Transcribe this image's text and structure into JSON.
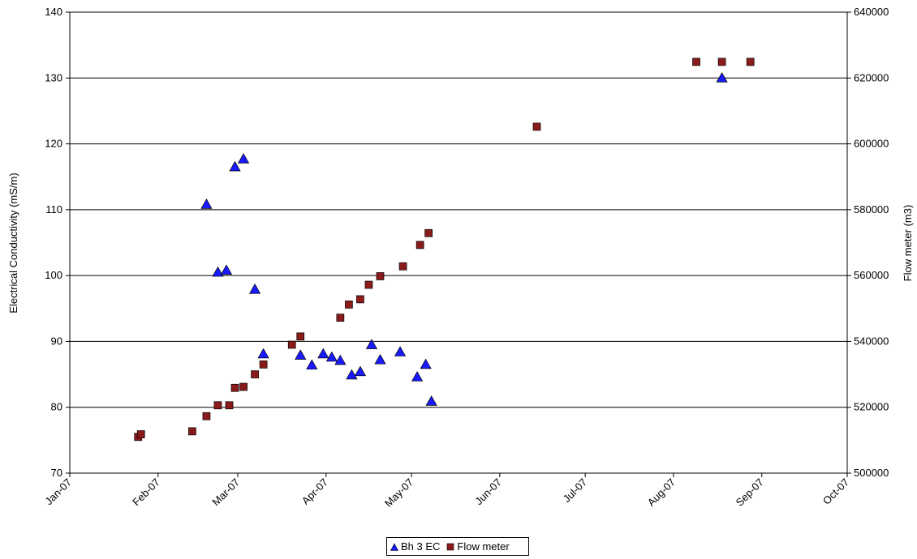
{
  "chart_data": {
    "type": "scatter",
    "title": "",
    "xlabel": "",
    "ylabel": "Electrical Conductivity (mS/m)",
    "y2label": "Flow meter (m3)",
    "x_tick_labels": [
      "Jan-07",
      "Feb-07",
      "Mar-07",
      "Apr-07",
      "May-07",
      "Jun-07",
      "Jul-07",
      "Aug-07",
      "Sep-07",
      "Oct-07"
    ],
    "x_ticks": [
      "2007-01-01",
      "2007-02-01",
      "2007-03-01",
      "2007-04-01",
      "2007-05-01",
      "2007-06-01",
      "2007-07-01",
      "2007-08-01",
      "2007-09-01",
      "2007-10-01"
    ],
    "xlim": [
      "2007-01-01",
      "2007-10-01"
    ],
    "ylim": [
      70,
      140
    ],
    "y_ticks": [
      70,
      80,
      90,
      100,
      110,
      120,
      130,
      140
    ],
    "y2lim": [
      500000,
      640000
    ],
    "y2_ticks": [
      500000,
      520000,
      540000,
      560000,
      580000,
      600000,
      620000,
      640000
    ],
    "grid": "horizontal major gridlines",
    "legend_position": "bottom-center",
    "series": [
      {
        "name": "Bh 3 EC",
        "axis": "left",
        "marker": "triangle",
        "color": "#1a1aff",
        "points": [
          {
            "x": "2007-02-18",
            "y": 110.8
          },
          {
            "x": "2007-02-22",
            "y": 100.5
          },
          {
            "x": "2007-02-25",
            "y": 100.8
          },
          {
            "x": "2007-02-28",
            "y": 116.5
          },
          {
            "x": "2007-03-03",
            "y": 117.7
          },
          {
            "x": "2007-03-07",
            "y": 97.9
          },
          {
            "x": "2007-03-10",
            "y": 88.1
          },
          {
            "x": "2007-03-23",
            "y": 87.9
          },
          {
            "x": "2007-03-27",
            "y": 86.4
          },
          {
            "x": "2007-03-31",
            "y": 88.1
          },
          {
            "x": "2007-04-03",
            "y": 87.6
          },
          {
            "x": "2007-04-06",
            "y": 87.1
          },
          {
            "x": "2007-04-10",
            "y": 84.9
          },
          {
            "x": "2007-04-13",
            "y": 85.4
          },
          {
            "x": "2007-04-17",
            "y": 89.5
          },
          {
            "x": "2007-04-20",
            "y": 87.2
          },
          {
            "x": "2007-04-27",
            "y": 88.4
          },
          {
            "x": "2007-05-03",
            "y": 84.6
          },
          {
            "x": "2007-05-06",
            "y": 86.5
          },
          {
            "x": "2007-05-08",
            "y": 80.9
          },
          {
            "x": "2007-08-18",
            "y": 130.0
          }
        ]
      },
      {
        "name": "Flow meter",
        "axis": "right",
        "marker": "square",
        "color": "#8b1a1a",
        "points": [
          {
            "x": "2007-01-25",
            "y": 511000
          },
          {
            "x": "2007-01-26",
            "y": 511800
          },
          {
            "x": "2007-02-13",
            "y": 512700
          },
          {
            "x": "2007-02-18",
            "y": 517300
          },
          {
            "x": "2007-02-22",
            "y": 520600
          },
          {
            "x": "2007-02-26",
            "y": 520600
          },
          {
            "x": "2007-02-28",
            "y": 525900
          },
          {
            "x": "2007-03-03",
            "y": 526200
          },
          {
            "x": "2007-03-07",
            "y": 530000
          },
          {
            "x": "2007-03-10",
            "y": 533000
          },
          {
            "x": "2007-03-20",
            "y": 539000
          },
          {
            "x": "2007-03-23",
            "y": 541500
          },
          {
            "x": "2007-04-06",
            "y": 547200
          },
          {
            "x": "2007-04-09",
            "y": 551200
          },
          {
            "x": "2007-04-13",
            "y": 552800
          },
          {
            "x": "2007-04-16",
            "y": 557200
          },
          {
            "x": "2007-04-20",
            "y": 559800
          },
          {
            "x": "2007-04-28",
            "y": 562800
          },
          {
            "x": "2007-05-04",
            "y": 569300
          },
          {
            "x": "2007-05-07",
            "y": 572900
          },
          {
            "x": "2007-06-14",
            "y": 605200
          },
          {
            "x": "2007-08-09",
            "y": 624900
          },
          {
            "x": "2007-08-18",
            "y": 624900
          },
          {
            "x": "2007-08-28",
            "y": 624900
          }
        ]
      }
    ]
  }
}
